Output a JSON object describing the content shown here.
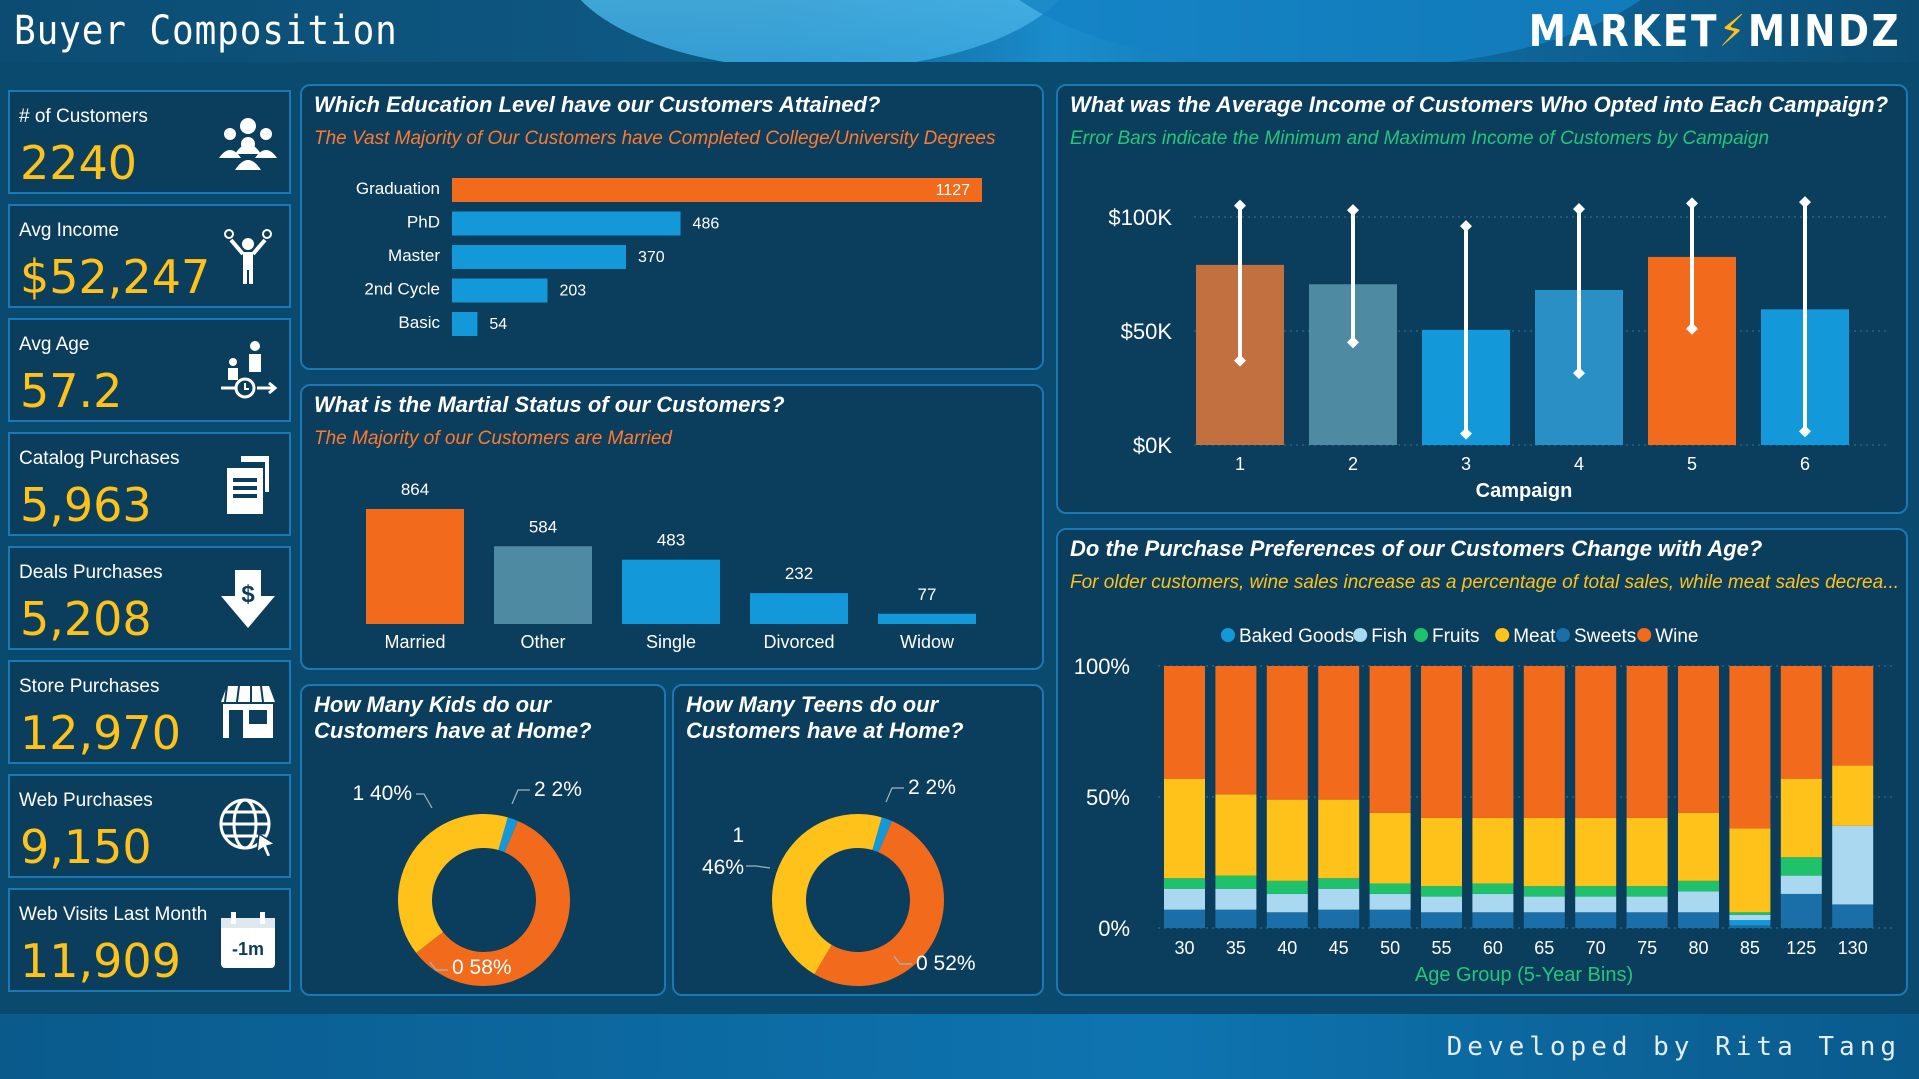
{
  "header": {
    "title": "Buyer Composition",
    "logo_left": "MARKET",
    "logo_right": "MINDZ"
  },
  "footer": {
    "credit": "Developed by Rita Tang"
  },
  "colors": {
    "orange": "#f26a1b",
    "blue": "#1398d9",
    "gold": "#ffc21a",
    "slate": "#4f8aa3",
    "panel": "#0b3d5c"
  },
  "kpis": [
    {
      "label": "# of Customers",
      "value": "2240",
      "icon": "customers-group-icon"
    },
    {
      "label": "Avg Income",
      "value": "$52,247",
      "icon": "money-person-icon"
    },
    {
      "label": "Avg Age",
      "value": "57.2",
      "icon": "age-clock-icon"
    },
    {
      "label": "Catalog Purchases",
      "value": "5,963",
      "icon": "catalog-document-icon"
    },
    {
      "label": "Deals Purchases",
      "value": "5,208",
      "icon": "deal-dollar-arrow-icon"
    },
    {
      "label": "Store Purchases",
      "value": "12,970",
      "icon": "storefront-icon"
    },
    {
      "label": "Web Purchases",
      "value": "9,150",
      "icon": "globe-cursor-icon"
    },
    {
      "label": "Web Visits Last Month",
      "value": "11,909",
      "icon": "calendar-minus-1m-icon"
    }
  ],
  "panels": {
    "education": {
      "title": "Which Education Level have our Customers Attained?",
      "subtitle": "The Vast Majority of Our Customers have Completed College/University Degrees"
    },
    "marital": {
      "title": "What is the Martial Status of our Customers?",
      "subtitle": "The Majority of our Customers are Married"
    },
    "kids": {
      "title_line1": "How Many Kids do our",
      "title_line2": "Customers have at Home?"
    },
    "teens": {
      "title_line1": "How Many Teens do our",
      "title_line2": "Customers have at Home?"
    },
    "income": {
      "title": "What was the Average Income of Customers Who Opted into Each Campaign?",
      "subtitle": "Error Bars indicate the Minimum and Maximum Income of Customers by Campaign"
    },
    "age": {
      "title": "Do the Purchase Preferences of our Customers Change with Age?",
      "subtitle": "For older customers, wine sales increase as a percentage of total sales, while meat sales decrea..."
    }
  },
  "chart_data": [
    {
      "type": "bar",
      "orientation": "horizontal",
      "categories": [
        "Graduation",
        "PhD",
        "Master",
        "2nd Cycle",
        "Basic"
      ],
      "values": [
        1127,
        486,
        370,
        203,
        54
      ],
      "highlight_color": "#f26a1b",
      "color": "#1398d9"
    },
    {
      "type": "bar",
      "categories": [
        "Married",
        "Other",
        "Single",
        "Divorced",
        "Widow"
      ],
      "values": [
        864,
        584,
        483,
        232,
        77
      ],
      "colors": [
        "#f26a1b",
        "#4f8aa3",
        "#1398d9",
        "#1398d9",
        "#1398d9"
      ]
    },
    {
      "type": "pie",
      "donut": true,
      "slices": [
        {
          "label": "0",
          "display": "0 58%",
          "value": 58,
          "color": "#f26a1b"
        },
        {
          "label": "1",
          "display": "1 40%",
          "value": 40,
          "color": "#ffc21a"
        },
        {
          "label": "2",
          "display": "2 2%",
          "value": 2,
          "color": "#1398d9"
        }
      ]
    },
    {
      "type": "pie",
      "donut": true,
      "slices": [
        {
          "label": "0",
          "display": "0 52%",
          "value": 52,
          "color": "#f26a1b"
        },
        {
          "label": "1",
          "display": "1\n46%",
          "value": 46,
          "color": "#ffc21a"
        },
        {
          "label": "2",
          "display": "2 2%",
          "value": 2,
          "color": "#1398d9"
        }
      ]
    },
    {
      "type": "bar",
      "categories": [
        "1",
        "2",
        "3",
        "4",
        "5",
        "6"
      ],
      "values": [
        79000,
        70500,
        50500,
        68000,
        82500,
        59500
      ],
      "error_min": [
        37000,
        45000,
        5000,
        31500,
        51000,
        6000
      ],
      "error_max": [
        105000,
        103000,
        96000,
        103500,
        106000,
        106500
      ],
      "colors": [
        "#c27040",
        "#4f8aa3",
        "#1398d9",
        "#2a8fc4",
        "#f26a1b",
        "#1398d9"
      ],
      "xlabel": "Campaign",
      "ylim": [
        0,
        100000
      ],
      "yticks": [
        "$0K",
        "$50K",
        "$100K"
      ]
    },
    {
      "type": "bar",
      "stacked": "percent",
      "categories": [
        "30",
        "35",
        "40",
        "45",
        "50",
        "55",
        "60",
        "65",
        "70",
        "75",
        "80",
        "85",
        "125",
        "130"
      ],
      "xlabel": "Age Group (5-Year Bins)",
      "yticks": [
        "0%",
        "50%",
        "100%"
      ],
      "series": [
        {
          "name": "Sweets",
          "color": "#1a6fa8",
          "values": [
            7,
            7,
            6,
            7,
            7,
            6,
            6,
            6,
            6,
            6,
            6,
            1,
            13,
            9
          ]
        },
        {
          "name": "Baked Goods",
          "color": "#1398d9",
          "values": [
            0,
            0,
            0,
            0,
            0,
            0,
            0,
            0,
            0,
            0,
            0,
            2,
            0,
            0
          ]
        },
        {
          "name": "Fish",
          "color": "#a9d8f0",
          "values": [
            8,
            8,
            7,
            8,
            6,
            6,
            7,
            6,
            6,
            6,
            8,
            2,
            7,
            30
          ]
        },
        {
          "name": "Fruits",
          "color": "#1fc16b",
          "values": [
            4,
            5,
            5,
            4,
            4,
            4,
            4,
            4,
            4,
            4,
            4,
            1,
            7,
            0
          ]
        },
        {
          "name": "Meat",
          "color": "#ffc21a",
          "values": [
            38,
            31,
            31,
            30,
            27,
            26,
            25,
            26,
            26,
            26,
            26,
            32,
            30,
            23
          ]
        },
        {
          "name": "Wine",
          "color": "#f26a1b",
          "values": [
            43,
            49,
            51,
            51,
            56,
            58,
            58,
            58,
            58,
            58,
            56,
            62,
            43,
            38
          ]
        }
      ],
      "legend_order": [
        "Baked Goods",
        "Fish",
        "Fruits",
        "Meat",
        "Sweets",
        "Wine"
      ],
      "legend_position": "top-center"
    }
  ]
}
